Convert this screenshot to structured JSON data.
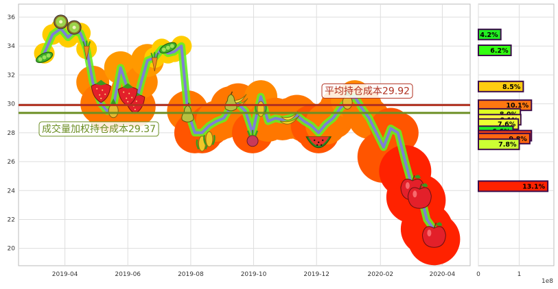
{
  "chart_data": [
    {
      "type": "line",
      "panel": "price",
      "xlim": [
        "2019-02-15",
        "2020-04-28"
      ],
      "ylim": [
        18.8,
        36.9
      ],
      "grid": true,
      "x_tick_labels": [
        "2019-04",
        "2019-06",
        "2019-08",
        "2019-10",
        "2019-12",
        "2020-02",
        "2020-04"
      ],
      "y_ticks": [
        20,
        22,
        24,
        26,
        28,
        30,
        32,
        34,
        36
      ],
      "series": [
        {
          "color": "#7f7fd5",
          "x": [
            "2019-03-12",
            "2019-03-20",
            "2019-03-28",
            "2019-04-04",
            "2019-04-10",
            "2019-04-16",
            "2019-04-22",
            "2019-04-28",
            "2019-05-06",
            "2019-05-12",
            "2019-05-18",
            "2019-05-25",
            "2019-06-01",
            "2019-06-08",
            "2019-06-14",
            "2019-06-20",
            "2019-06-27",
            "2019-07-04",
            "2019-07-10",
            "2019-07-16",
            "2019-07-23",
            "2019-07-29",
            "2019-08-05",
            "2019-08-12",
            "2019-08-19",
            "2019-08-26",
            "2019-09-02",
            "2019-09-09",
            "2019-09-16",
            "2019-09-23",
            "2019-09-30",
            "2019-10-08",
            "2019-10-15",
            "2019-10-22",
            "2019-10-29",
            "2019-11-05",
            "2019-11-12",
            "2019-11-19",
            "2019-11-26",
            "2019-12-03",
            "2019-12-10",
            "2019-12-17",
            "2019-12-24",
            "2019-12-31",
            "2020-01-07",
            "2020-01-14",
            "2020-01-21",
            "2020-02-04",
            "2020-02-11",
            "2020-02-18",
            "2020-02-25",
            "2020-03-03",
            "2020-03-10",
            "2020-03-17",
            "2020-03-24"
          ],
          "y": [
            33.5,
            34.8,
            35.2,
            34.6,
            35.0,
            34.9,
            33.8,
            31.5,
            30.0,
            29.5,
            29.8,
            32.5,
            31.0,
            29.8,
            31.5,
            33.0,
            33.2,
            33.8,
            33.5,
            33.6,
            34.0,
            29.5,
            28.0,
            28.0,
            28.5,
            28.8,
            29.0,
            29.8,
            30.0,
            29.5,
            28.0,
            30.5,
            28.8,
            29.0,
            28.9,
            29.0,
            29.2,
            28.8,
            28.5,
            28.0,
            28.6,
            29.0,
            29.7,
            30.2,
            30.5,
            29.7,
            29.0,
            27.0,
            28.3,
            28.0,
            26.0,
            24.2,
            24.0,
            22.0,
            21.3
          ]
        }
      ],
      "annotations": [
        {
          "text": "平均持仓成本29.92",
          "y": 29.92,
          "color": "#b03020"
        },
        {
          "text": "成交量加权持仓成本29.37",
          "y": 29.37,
          "color": "#6b8e23"
        }
      ],
      "fruit_icons": [
        "kiwi-icon",
        "pea-pod-icon",
        "carrot-icon",
        "strawberry-icon",
        "pineapple-icon",
        "pear-icon",
        "banana-icon",
        "corn-icon",
        "radish-icon",
        "watermelon-icon",
        "apple-icon"
      ]
    },
    {
      "type": "bar",
      "orientation": "horizontal",
      "panel": "volume-profile",
      "xlim": [
        0,
        1.85
      ],
      "x_ticks": [
        0,
        1
      ],
      "x_tick_labels": [
        "0",
        "1"
      ],
      "x_scale_label": "1e8",
      "bars": [
        {
          "label": "4.2%",
          "price": 34.8,
          "value": 0.55,
          "color": "#22ee22"
        },
        {
          "label": "6.2%",
          "price": 33.7,
          "value": 0.8,
          "color": "#33ff11"
        },
        {
          "label": "8.5%",
          "price": 31.2,
          "value": 1.1,
          "color": "#ffcc11"
        },
        {
          "label": "10.1%",
          "price": 29.9,
          "value": 1.3,
          "color": "#ff7711"
        },
        {
          "label": "8.0%",
          "price": 29.3,
          "value": 1.03,
          "color": "#ddff22"
        },
        {
          "label": "8.1%",
          "price": 28.9,
          "value": 1.04,
          "color": "#ffff44"
        },
        {
          "label": "7.6%",
          "price": 28.6,
          "value": 0.98,
          "color": "#eeff33"
        },
        {
          "label": "6.6%",
          "price": 28.1,
          "value": 0.85,
          "color": "#22ee22"
        },
        {
          "label": "10.1%",
          "price": 27.8,
          "value": 1.3,
          "color": "#ff4411"
        },
        {
          "label": "9.8%",
          "price": 27.6,
          "value": 1.26,
          "color": "#ff6611"
        },
        {
          "label": "7.8%",
          "price": 27.2,
          "value": 1.0,
          "color": "#ccff33"
        },
        {
          "label": "13.1%",
          "price": 24.3,
          "value": 1.7,
          "color": "#ff2200"
        }
      ]
    }
  ]
}
